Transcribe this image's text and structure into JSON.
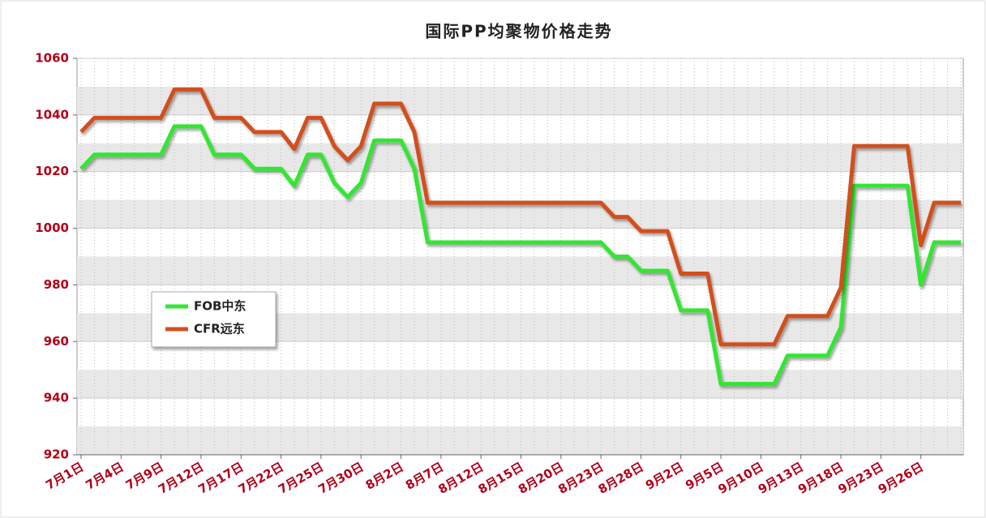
{
  "chart_data": {
    "type": "line",
    "title": "国际PP均聚物价格走势",
    "categories": [
      "7月1日",
      null,
      null,
      "7月4日",
      null,
      null,
      "7月9日",
      null,
      null,
      "7月12日",
      null,
      null,
      "7月17日",
      null,
      null,
      "7月22日",
      null,
      null,
      "7月25日",
      null,
      null,
      "7月30日",
      null,
      null,
      "8月2日",
      null,
      null,
      "8月7日",
      null,
      null,
      "8月12日",
      null,
      null,
      "8月15日",
      null,
      null,
      "8月20日",
      null,
      null,
      "8月23日",
      null,
      null,
      "8月28日",
      null,
      null,
      "9月2日",
      null,
      null,
      "9月5日",
      null,
      null,
      "9月10日",
      null,
      null,
      "9月13日",
      null,
      null,
      "9月18日",
      null,
      null,
      "9月23日",
      null,
      null,
      "9月26日",
      null,
      null,
      null
    ],
    "series": [
      {
        "name": "FOB中东",
        "color": "#33e633",
        "values": [
          1021,
          1026,
          1026,
          1026,
          1026,
          1026,
          1026,
          1036,
          1036,
          1036,
          1026,
          1026,
          1026,
          1021,
          1021,
          1021,
          1015,
          1026,
          1026,
          1016,
          1011,
          1016,
          1031,
          1031,
          1031,
          1021,
          995,
          995,
          995,
          995,
          995,
          995,
          995,
          995,
          995,
          995,
          995,
          995,
          995,
          995,
          990,
          990,
          985,
          985,
          985,
          971,
          971,
          971,
          945,
          945,
          945,
          945,
          945,
          955,
          955,
          955,
          955,
          965,
          1015,
          1015,
          1015,
          1015,
          1015,
          980,
          995,
          995,
          995
        ]
      },
      {
        "name": "CFR远东",
        "color": "#d2501e",
        "values": [
          1034,
          1039,
          1039,
          1039,
          1039,
          1039,
          1039,
          1049,
          1049,
          1049,
          1039,
          1039,
          1039,
          1034,
          1034,
          1034,
          1028,
          1039,
          1039,
          1029,
          1024,
          1029,
          1044,
          1044,
          1044,
          1034,
          1009,
          1009,
          1009,
          1009,
          1009,
          1009,
          1009,
          1009,
          1009,
          1009,
          1009,
          1009,
          1009,
          1009,
          1004,
          1004,
          999,
          999,
          999,
          984,
          984,
          984,
          959,
          959,
          959,
          959,
          959,
          969,
          969,
          969,
          969,
          979,
          1029,
          1029,
          1029,
          1029,
          1029,
          994,
          1009,
          1009,
          1009
        ]
      }
    ],
    "ylim": [
      920,
      1060
    ],
    "yticks": [
      920,
      940,
      960,
      980,
      1000,
      1020,
      1040,
      1060
    ],
    "grid": true,
    "legend": "lower left"
  }
}
